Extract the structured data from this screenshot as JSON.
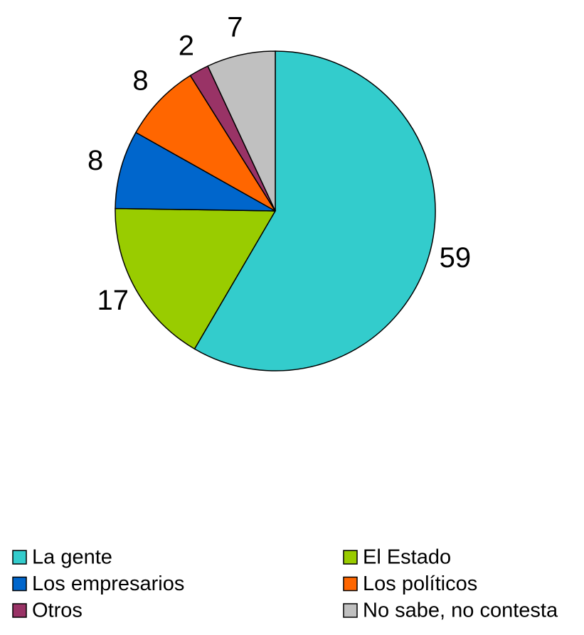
{
  "chart_data": {
    "type": "pie",
    "categories": [
      "La gente",
      "El Estado",
      "Los empresarios",
      "Los políticos",
      "Otros",
      "No sabe, no contesta"
    ],
    "values": [
      59,
      17,
      8,
      8,
      2,
      7
    ],
    "colors": [
      "#33CCCC",
      "#99CC00",
      "#0066CC",
      "#FF6600",
      "#993366",
      "#C0C0C0"
    ],
    "legend": "bottom"
  }
}
